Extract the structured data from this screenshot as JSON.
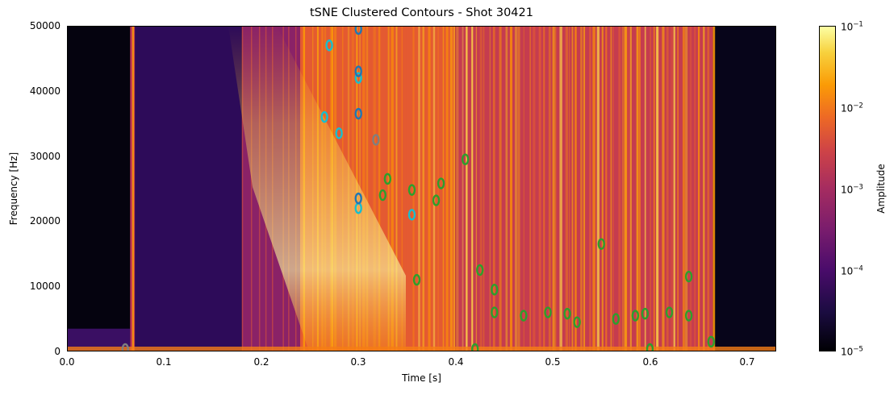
{
  "chart_data": {
    "type": "heatmap",
    "subtype": "spectrogram with cluster contours",
    "title": "tSNE Clustered Contours - Shot 30421",
    "xlabel": "Time [s]",
    "ylabel": "Frequency [Hz]",
    "xlim": [
      0.0,
      0.73
    ],
    "ylim": [
      0,
      50000
    ],
    "xticks": [
      "0.0",
      "0.1",
      "0.2",
      "0.3",
      "0.4",
      "0.5",
      "0.6",
      "0.7"
    ],
    "yticks": [
      "0",
      "10000",
      "20000",
      "30000",
      "40000",
      "50000"
    ],
    "colormap": "inferno",
    "colorbar": {
      "label": "Amplitude",
      "scale": "log",
      "range": [
        1e-05,
        0.1
      ],
      "ticks": [
        {
          "base": "10",
          "exp": "−1",
          "value": 0.1
        },
        {
          "base": "10",
          "exp": "−2",
          "value": 0.01
        },
        {
          "base": "10",
          "exp": "−3",
          "value": 0.001
        },
        {
          "base": "10",
          "exp": "−4",
          "value": 0.0001
        },
        {
          "base": "10",
          "exp": "−5",
          "value": 1e-05
        }
      ]
    },
    "regions": [
      {
        "t": [
          0.0,
          0.065
        ],
        "level": "very low (~1e-5)",
        "note": "quiet pre-shot, low-freq band below 3500 Hz"
      },
      {
        "t": [
          0.065,
          0.07
        ],
        "level": "moderate",
        "note": "broadband vertical line"
      },
      {
        "t": [
          0.07,
          0.18
        ],
        "level": "low (~1e-4)"
      },
      {
        "t": [
          0.18,
          0.24
        ],
        "level": "moderate (~1e-3)"
      },
      {
        "t": [
          0.24,
          0.4
        ],
        "level": "high (~1e-2 to 1e-1)",
        "note": "bright chirp descending from ~40 kHz to ~10 kHz"
      },
      {
        "t": [
          0.4,
          0.665
        ],
        "level": "moderate-high",
        "note": "dense vertical broadband striations"
      },
      {
        "t": [
          0.665,
          0.73
        ],
        "level": "very low",
        "note": "post-shot quiet"
      }
    ],
    "contour_clusters": [
      {
        "name": "cluster-cyan",
        "color": "#17becf",
        "approx_points": [
          [
            0.27,
            47000
          ],
          [
            0.265,
            36000
          ],
          [
            0.28,
            33500
          ],
          [
            0.3,
            42000
          ],
          [
            0.3,
            22000
          ],
          [
            0.355,
            21000
          ]
        ]
      },
      {
        "name": "cluster-blue",
        "color": "#1f77b4",
        "approx_points": [
          [
            0.3,
            49500
          ],
          [
            0.3,
            43000
          ],
          [
            0.3,
            36500
          ],
          [
            0.3,
            23500
          ]
        ]
      },
      {
        "name": "cluster-gray",
        "color": "#7f7f7f",
        "approx_points": [
          [
            0.318,
            32500
          ],
          [
            0.06,
            200
          ]
        ]
      },
      {
        "name": "cluster-green",
        "color": "#2ca02c",
        "approx_points": [
          [
            0.33,
            26500
          ],
          [
            0.325,
            24000
          ],
          [
            0.355,
            24800
          ],
          [
            0.38,
            23200
          ],
          [
            0.385,
            25800
          ],
          [
            0.41,
            29500
          ],
          [
            0.36,
            11000
          ],
          [
            0.425,
            12500
          ],
          [
            0.44,
            9500
          ],
          [
            0.44,
            6000
          ],
          [
            0.47,
            5500
          ],
          [
            0.495,
            6000
          ],
          [
            0.515,
            5800
          ],
          [
            0.525,
            4500
          ],
          [
            0.55,
            16500
          ],
          [
            0.565,
            5000
          ],
          [
            0.585,
            5500
          ],
          [
            0.595,
            5800
          ],
          [
            0.62,
            6000
          ],
          [
            0.64,
            11500
          ],
          [
            0.64,
            5500
          ],
          [
            0.663,
            1500
          ],
          [
            0.42,
            100
          ],
          [
            0.6,
            100
          ]
        ]
      }
    ]
  }
}
